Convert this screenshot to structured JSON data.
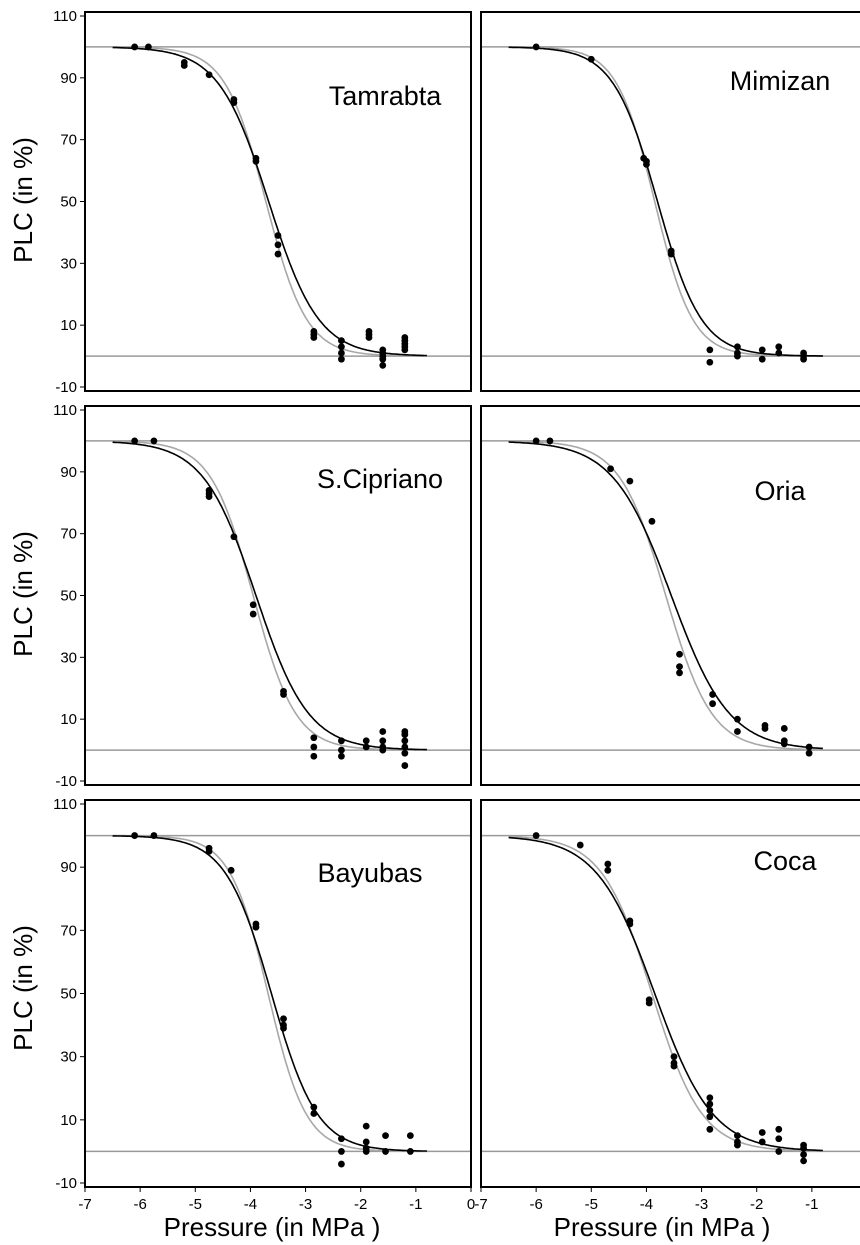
{
  "figure": {
    "ylabel": "PLC (in %)",
    "xlabel": "Pressure (in MPa )",
    "x_ticks": [
      "-7",
      "-6",
      "-5",
      "-4",
      "-3",
      "-2",
      "-1",
      "0"
    ],
    "y_ticks": [
      "-10",
      "10",
      "30",
      "50",
      "70",
      "90",
      "110"
    ]
  },
  "colors": {
    "frame": "#000000",
    "points": "#000000",
    "fit_dark": "#000000",
    "fit_light": "#a8a8a8",
    "reference_lines": "#9a9a9a"
  },
  "chart_data": [
    {
      "type": "scatter",
      "title": "Tamrabta",
      "xlabel": "Pressure (in MPa )",
      "ylabel": "PLC (in %)",
      "xlim": [
        -7,
        0
      ],
      "ylim": [
        -10,
        110
      ],
      "reference_lines_y": [
        0,
        100
      ],
      "fits": {
        "dark": {
          "p50": -3.67,
          "slope": 2.2
        },
        "light": {
          "p50": -3.72,
          "slope": 2.7
        }
      },
      "points": [
        [
          -6.1,
          100
        ],
        [
          -5.85,
          100
        ],
        [
          -5.2,
          95
        ],
        [
          -5.2,
          94
        ],
        [
          -4.75,
          91
        ],
        [
          -4.3,
          83
        ],
        [
          -4.3,
          82
        ],
        [
          -3.9,
          64
        ],
        [
          -3.9,
          63
        ],
        [
          -3.5,
          39
        ],
        [
          -3.5,
          36
        ],
        [
          -3.5,
          33
        ],
        [
          -2.85,
          8
        ],
        [
          -2.85,
          7
        ],
        [
          -2.85,
          6
        ],
        [
          -2.35,
          5
        ],
        [
          -2.35,
          3
        ],
        [
          -2.35,
          1
        ],
        [
          -2.35,
          -1
        ],
        [
          -1.85,
          8
        ],
        [
          -1.85,
          7
        ],
        [
          -1.85,
          6
        ],
        [
          -1.6,
          2
        ],
        [
          -1.6,
          1
        ],
        [
          -1.6,
          0
        ],
        [
          -1.6,
          -1
        ],
        [
          -1.6,
          -3
        ],
        [
          -1.2,
          6
        ],
        [
          -1.2,
          5
        ],
        [
          -1.2,
          4
        ],
        [
          -1.2,
          3
        ],
        [
          -1.2,
          2
        ]
      ]
    },
    {
      "type": "scatter",
      "title": "Mimizan",
      "xlabel": "Pressure (in MPa )",
      "ylabel": "PLC (in %)",
      "xlim": [
        -7,
        0
      ],
      "ylim": [
        -10,
        110
      ],
      "reference_lines_y": [
        0,
        100
      ],
      "fits": {
        "dark": {
          "p50": -3.8,
          "slope": 2.5
        },
        "light": {
          "p50": -3.85,
          "slope": 2.9
        }
      },
      "points": [
        [
          -6.0,
          100
        ],
        [
          -5.0,
          96
        ],
        [
          -4.05,
          64
        ],
        [
          -4.0,
          63
        ],
        [
          -4.0,
          62
        ],
        [
          -3.55,
          34
        ],
        [
          -3.55,
          33
        ],
        [
          -2.85,
          2
        ],
        [
          -2.85,
          -2
        ],
        [
          -2.35,
          3
        ],
        [
          -2.35,
          1
        ],
        [
          -2.35,
          0
        ],
        [
          -1.9,
          2
        ],
        [
          -1.9,
          -1
        ],
        [
          -1.6,
          3
        ],
        [
          -1.6,
          1
        ],
        [
          -1.15,
          1
        ],
        [
          -1.15,
          0
        ],
        [
          -1.15,
          -1
        ]
      ]
    },
    {
      "type": "scatter",
      "title": "S.Cipriano",
      "xlabel": "Pressure (in MPa )",
      "ylabel": "PLC (in %)",
      "xlim": [
        -7,
        0
      ],
      "ylim": [
        -10,
        110
      ],
      "reference_lines_y": [
        0,
        100
      ],
      "fits": {
        "dark": {
          "p50": -3.9,
          "slope": 2.1
        },
        "light": {
          "p50": -3.95,
          "slope": 2.6
        }
      },
      "points": [
        [
          -6.1,
          100
        ],
        [
          -5.75,
          100
        ],
        [
          -4.75,
          84
        ],
        [
          -4.75,
          83
        ],
        [
          -4.75,
          82
        ],
        [
          -4.3,
          69
        ],
        [
          -3.95,
          47
        ],
        [
          -3.95,
          44
        ],
        [
          -3.4,
          19
        ],
        [
          -3.4,
          18
        ],
        [
          -2.85,
          4
        ],
        [
          -2.85,
          1
        ],
        [
          -2.85,
          -2
        ],
        [
          -2.35,
          3
        ],
        [
          -2.35,
          0
        ],
        [
          -2.35,
          -2
        ],
        [
          -1.9,
          3
        ],
        [
          -1.9,
          1
        ],
        [
          -1.6,
          6
        ],
        [
          -1.6,
          3
        ],
        [
          -1.6,
          1
        ],
        [
          -1.6,
          0
        ],
        [
          -1.2,
          6
        ],
        [
          -1.2,
          5
        ],
        [
          -1.2,
          3
        ],
        [
          -1.2,
          1
        ],
        [
          -1.2,
          -1
        ],
        [
          -1.2,
          -5
        ]
      ]
    },
    {
      "type": "scatter",
      "title": "Oria",
      "xlabel": "Pressure (in MPa )",
      "ylabel": "PLC (in %)",
      "xlim": [
        -7,
        0
      ],
      "ylim": [
        -10,
        110
      ],
      "reference_lines_y": [
        0,
        100
      ],
      "fits": {
        "dark": {
          "p50": -3.55,
          "slope": 1.9
        },
        "light": {
          "p50": -3.65,
          "slope": 2.4
        }
      },
      "points": [
        [
          -6.0,
          100
        ],
        [
          -5.75,
          100
        ],
        [
          -4.65,
          91
        ],
        [
          -4.3,
          87
        ],
        [
          -3.9,
          74
        ],
        [
          -3.4,
          31
        ],
        [
          -3.4,
          27
        ],
        [
          -3.4,
          25
        ],
        [
          -2.8,
          18
        ],
        [
          -2.8,
          15
        ],
        [
          -2.35,
          10
        ],
        [
          -2.35,
          6
        ],
        [
          -1.85,
          8
        ],
        [
          -1.85,
          7
        ],
        [
          -1.5,
          7
        ],
        [
          -1.5,
          3
        ],
        [
          -1.5,
          2
        ],
        [
          -1.05,
          1
        ],
        [
          -1.05,
          -1
        ]
      ]
    },
    {
      "type": "scatter",
      "title": "Bayubas",
      "xlabel": "Pressure (in MPa )",
      "ylabel": "PLC (in %)",
      "xlim": [
        -7,
        0
      ],
      "ylim": [
        -10,
        110
      ],
      "reference_lines_y": [
        0,
        100
      ],
      "fits": {
        "dark": {
          "p50": -3.62,
          "slope": 2.4
        },
        "light": {
          "p50": -3.68,
          "slope": 2.9
        }
      },
      "points": [
        [
          -6.1,
          100
        ],
        [
          -5.75,
          100
        ],
        [
          -4.75,
          96
        ],
        [
          -4.75,
          95
        ],
        [
          -4.35,
          89
        ],
        [
          -3.9,
          72
        ],
        [
          -3.9,
          71
        ],
        [
          -3.4,
          42
        ],
        [
          -3.4,
          40
        ],
        [
          -3.4,
          39
        ],
        [
          -2.85,
          14
        ],
        [
          -2.85,
          12
        ],
        [
          -2.35,
          4
        ],
        [
          -2.35,
          0
        ],
        [
          -2.35,
          -4
        ],
        [
          -1.9,
          8
        ],
        [
          -1.9,
          3
        ],
        [
          -1.9,
          1
        ],
        [
          -1.9,
          0
        ],
        [
          -1.55,
          5
        ],
        [
          -1.55,
          0
        ],
        [
          -1.1,
          5
        ],
        [
          -1.1,
          0
        ]
      ]
    },
    {
      "type": "scatter",
      "title": "Coca",
      "xlabel": "Pressure (in MPa )",
      "ylabel": "PLC (in %)",
      "xlim": [
        -7,
        0
      ],
      "ylim": [
        -10,
        110
      ],
      "reference_lines_y": [
        0,
        100
      ],
      "fits": {
        "dark": {
          "p50": -3.85,
          "slope": 1.9
        },
        "light": {
          "p50": -3.9,
          "slope": 2.2
        }
      },
      "points": [
        [
          -6.0,
          100
        ],
        [
          -5.2,
          97
        ],
        [
          -4.7,
          91
        ],
        [
          -4.7,
          89
        ],
        [
          -4.3,
          73
        ],
        [
          -4.3,
          72
        ],
        [
          -3.95,
          48
        ],
        [
          -3.95,
          47
        ],
        [
          -3.5,
          30
        ],
        [
          -3.5,
          28
        ],
        [
          -3.5,
          27
        ],
        [
          -2.85,
          17
        ],
        [
          -2.85,
          15
        ],
        [
          -2.85,
          13
        ],
        [
          -2.85,
          11
        ],
        [
          -2.85,
          7
        ],
        [
          -2.35,
          5
        ],
        [
          -2.35,
          3
        ],
        [
          -2.35,
          2
        ],
        [
          -1.9,
          6
        ],
        [
          -1.9,
          3
        ],
        [
          -1.6,
          7
        ],
        [
          -1.6,
          4
        ],
        [
          -1.6,
          0
        ],
        [
          -1.15,
          2
        ],
        [
          -1.15,
          1
        ],
        [
          -1.15,
          -1
        ],
        [
          -1.15,
          -3
        ]
      ]
    }
  ]
}
